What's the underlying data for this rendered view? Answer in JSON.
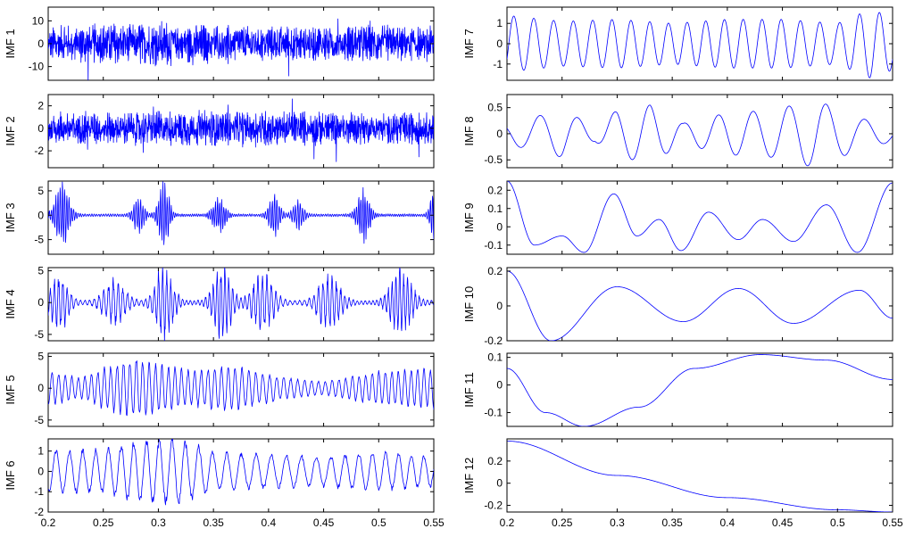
{
  "chart_data": {
    "type": "line",
    "title": "",
    "xlim": [
      0.2,
      0.55
    ],
    "x_ticks": [
      0.2,
      0.25,
      0.3,
      0.35,
      0.4,
      0.45,
      0.5,
      0.55
    ],
    "x_tick_labels": [
      "0.2",
      "0.25",
      "0.3",
      "0.35",
      "0.4",
      "0.45",
      "0.5",
      "0.55"
    ],
    "line_color": "#0000ff",
    "grid": false,
    "panels": [
      {
        "ylabel": "IMF 1",
        "ylim": [
          -16,
          16
        ],
        "yticks": [
          -10,
          0,
          10
        ],
        "ytick_labels": [
          "-10",
          "0",
          "10"
        ],
        "model": "noise",
        "freq": 1100,
        "amp": 6,
        "envelope": [
          [
            0.2,
            1.0
          ],
          [
            0.3,
            1.3
          ],
          [
            0.4,
            1.0
          ],
          [
            0.5,
            1.1
          ],
          [
            0.55,
            1.0
          ]
        ]
      },
      {
        "ylabel": "IMF 2",
        "ylim": [
          -3.5,
          3
        ],
        "yticks": [
          -2,
          0,
          2
        ],
        "ytick_labels": [
          "-2",
          "0",
          "2"
        ],
        "model": "noise",
        "freq": 2400,
        "amp": 1.1,
        "envelope": [
          [
            0.2,
            1.0
          ],
          [
            0.3,
            1.1
          ],
          [
            0.4,
            1.2
          ],
          [
            0.5,
            1.0
          ],
          [
            0.55,
            1.0
          ]
        ]
      },
      {
        "ylabel": "IMF 3",
        "ylim": [
          -8,
          7
        ],
        "yticks": [
          -5,
          0,
          5
        ],
        "ytick_labels": [
          "-5",
          "0",
          "5"
        ],
        "model": "bursts",
        "freq": 500,
        "amp": 1.0,
        "bursts": [
          [
            0.213,
            0.008,
            6
          ],
          [
            0.282,
            0.006,
            3
          ],
          [
            0.305,
            0.006,
            6
          ],
          [
            0.355,
            0.007,
            3
          ],
          [
            0.405,
            0.006,
            4
          ],
          [
            0.427,
            0.006,
            2.5
          ],
          [
            0.486,
            0.007,
            5
          ],
          [
            0.55,
            0.004,
            6
          ]
        ]
      },
      {
        "ylabel": "IMF 4",
        "ylim": [
          -6,
          5.5
        ],
        "yticks": [
          -5,
          0,
          5
        ],
        "ytick_labels": [
          "-5",
          "0",
          "5"
        ],
        "model": "bursts",
        "freq": 260,
        "amp": 1.3,
        "bursts": [
          [
            0.21,
            0.01,
            3
          ],
          [
            0.26,
            0.012,
            2.5
          ],
          [
            0.305,
            0.01,
            4
          ],
          [
            0.358,
            0.01,
            4
          ],
          [
            0.395,
            0.012,
            3
          ],
          [
            0.455,
            0.012,
            3
          ],
          [
            0.52,
            0.012,
            3.5
          ]
        ]
      },
      {
        "ylabel": "IMF 5",
        "ylim": [
          -6,
          5.5
        ],
        "yticks": [
          -5,
          0,
          5
        ],
        "ytick_labels": [
          "-5",
          "0",
          "5"
        ],
        "model": "am",
        "freq": 165,
        "amp": 1,
        "envelope": [
          [
            0.2,
            2.5
          ],
          [
            0.23,
            1.5
          ],
          [
            0.25,
            3
          ],
          [
            0.28,
            4.5
          ],
          [
            0.3,
            3.5
          ],
          [
            0.33,
            2.5
          ],
          [
            0.36,
            3.5
          ],
          [
            0.39,
            2.5
          ],
          [
            0.42,
            1.5
          ],
          [
            0.45,
            1.0
          ],
          [
            0.5,
            2.5
          ],
          [
            0.55,
            3
          ]
        ]
      },
      {
        "ylabel": "IMF 6",
        "ylim": [
          -2,
          1.6
        ],
        "yticks": [
          -2,
          -1,
          0,
          1
        ],
        "ytick_labels": [
          "-2",
          "-1",
          "0",
          "1"
        ],
        "model": "am",
        "freq": 80,
        "amp": 1,
        "envelope": [
          [
            0.2,
            1.0
          ],
          [
            0.25,
            1.0
          ],
          [
            0.28,
            1.4
          ],
          [
            0.32,
            1.5
          ],
          [
            0.35,
            0.9
          ],
          [
            0.4,
            0.8
          ],
          [
            0.45,
            0.7
          ],
          [
            0.5,
            0.9
          ],
          [
            0.55,
            0.7
          ]
        ]
      },
      {
        "ylabel": "IMF 7",
        "ylim": [
          -1.8,
          1.8
        ],
        "yticks": [
          -1,
          0,
          1
        ],
        "ytick_labels": [
          "-1",
          "0",
          "1"
        ],
        "model": "sine",
        "freq": 57,
        "phase": 3.4,
        "amp": 1,
        "envelope": [
          [
            0.2,
            1.4
          ],
          [
            0.25,
            1.1
          ],
          [
            0.3,
            1.2
          ],
          [
            0.35,
            1.0
          ],
          [
            0.4,
            1.2
          ],
          [
            0.45,
            1.2
          ],
          [
            0.5,
            1.0
          ],
          [
            0.53,
            1.7
          ],
          [
            0.55,
            1.3
          ]
        ]
      },
      {
        "ylabel": "IMF 8",
        "ylim": [
          -0.65,
          0.75
        ],
        "yticks": [
          -0.5,
          0,
          0.5
        ],
        "ytick_labels": [
          "-0.5",
          "0",
          "0.5"
        ],
        "model": "sine",
        "freq": 30,
        "phase": 2.8,
        "amp": 1,
        "envelope": [
          [
            0.2,
            0.2
          ],
          [
            0.22,
            0.3
          ],
          [
            0.25,
            0.45
          ],
          [
            0.28,
            0.15
          ],
          [
            0.3,
            0.45
          ],
          [
            0.33,
            0.55
          ],
          [
            0.36,
            0.2
          ],
          [
            0.4,
            0.4
          ],
          [
            0.44,
            0.45
          ],
          [
            0.48,
            0.65
          ],
          [
            0.52,
            0.3
          ],
          [
            0.55,
            0.15
          ]
        ]
      },
      {
        "ylabel": "IMF 9",
        "ylim": [
          -0.15,
          0.25
        ],
        "yticks": [
          -0.1,
          0,
          0.1,
          0.2
        ],
        "ytick_labels": [
          "-0.1",
          "0",
          "0.1",
          "0.2"
        ],
        "model": "points",
        "x": [
          0.2,
          0.225,
          0.25,
          0.27,
          0.297,
          0.318,
          0.338,
          0.358,
          0.383,
          0.41,
          0.432,
          0.46,
          0.49,
          0.518,
          0.55
        ],
        "y": [
          0.25,
          -0.1,
          -0.05,
          -0.14,
          0.18,
          -0.05,
          0.04,
          -0.13,
          0.08,
          -0.07,
          0.04,
          -0.08,
          0.12,
          -0.14,
          0.24
        ]
      },
      {
        "ylabel": "IMF 10",
        "ylim": [
          -0.2,
          0.22
        ],
        "yticks": [
          -0.2,
          0,
          0.2
        ],
        "ytick_labels": [
          "-0.2",
          "0",
          "0.2"
        ],
        "model": "points",
        "x": [
          0.2,
          0.24,
          0.3,
          0.36,
          0.41,
          0.46,
          0.52,
          0.55
        ],
        "y": [
          0.2,
          -0.2,
          0.11,
          -0.09,
          0.1,
          -0.1,
          0.09,
          -0.07
        ]
      },
      {
        "ylabel": "IMF 11",
        "ylim": [
          -0.15,
          0.115
        ],
        "yticks": [
          -0.1,
          0,
          0.1
        ],
        "ytick_labels": [
          "-0.1",
          "0",
          "0.1"
        ],
        "model": "points",
        "x": [
          0.2,
          0.235,
          0.27,
          0.32,
          0.37,
          0.43,
          0.49,
          0.55
        ],
        "y": [
          0.06,
          -0.1,
          -0.15,
          -0.08,
          0.06,
          0.11,
          0.09,
          0.02
        ]
      },
      {
        "ylabel": "IMF 12",
        "ylim": [
          -0.26,
          0.4
        ],
        "yticks": [
          -0.2,
          0,
          0.2
        ],
        "ytick_labels": [
          "-0.2",
          "0",
          "0.2"
        ],
        "model": "points",
        "x": [
          0.2,
          0.3,
          0.4,
          0.5,
          0.55
        ],
        "y": [
          0.38,
          0.07,
          -0.13,
          -0.24,
          -0.26
        ]
      }
    ]
  }
}
